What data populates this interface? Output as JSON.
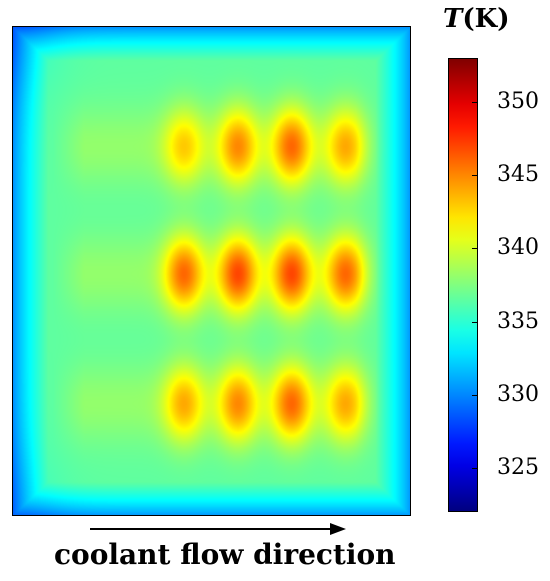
{
  "chart_data": {
    "type": "heatmap",
    "title": "",
    "colorbar": {
      "label_symbol": "T",
      "label_unit": "(K)",
      "ticks": [
        325,
        330,
        335,
        340,
        345,
        350
      ],
      "range": [
        322,
        353
      ],
      "colormap": "jet"
    },
    "xlabel": "coolant flow direction",
    "field": {
      "background_min_K": 330,
      "edge_K": 331,
      "plate_K": 336.5,
      "rows": [
        {
          "name": "top",
          "hotspots_K": [
            343,
            345,
            346,
            344
          ]
        },
        {
          "name": "middle",
          "hotspots_K": [
            346,
            347,
            347,
            346
          ]
        },
        {
          "name": "bottom",
          "hotspots_K": [
            344,
            345,
            346,
            344
          ]
        }
      ]
    }
  },
  "labels": {
    "unit_symbol": "T",
    "unit_text": "(K)",
    "flow_direction": "coolant flow direction"
  }
}
